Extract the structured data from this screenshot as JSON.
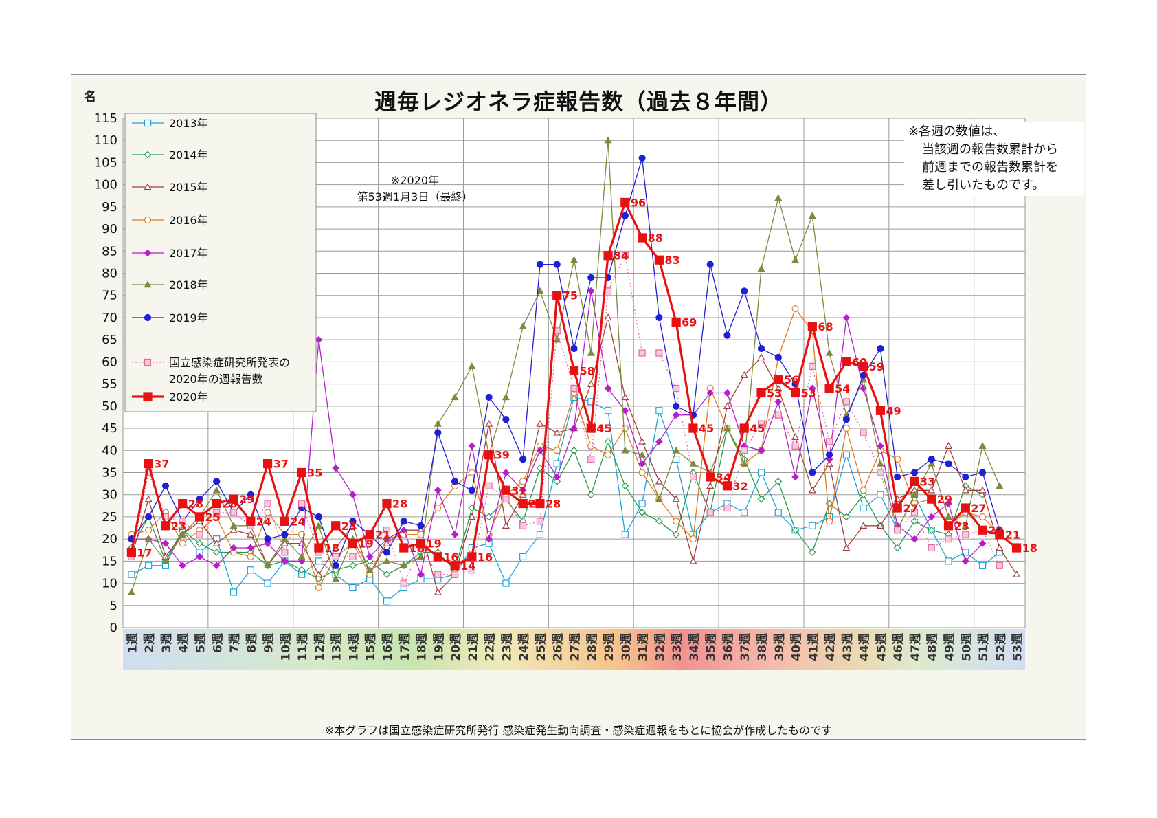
{
  "chart_data": {
    "type": "line",
    "title": "週毎レジオネラ症報告数（過去８年間）",
    "ylabel": "名",
    "xlabel": "",
    "ylim": [
      0,
      115
    ],
    "yticks": [
      0,
      5,
      10,
      15,
      20,
      25,
      30,
      35,
      40,
      45,
      50,
      55,
      60,
      65,
      70,
      75,
      80,
      85,
      90,
      95,
      100,
      105,
      110,
      115
    ],
    "grid": true,
    "legend_position": "top-left",
    "categories": [
      "1週",
      "2週",
      "3週",
      "4週",
      "5週",
      "6週",
      "7週",
      "8週",
      "9週",
      "10週",
      "11週",
      "12週",
      "13週",
      "14週",
      "15週",
      "16週",
      "17週",
      "18週",
      "19週",
      "20週",
      "21週",
      "22週",
      "23週",
      "24週",
      "25週",
      "26週",
      "27週",
      "28週",
      "29週",
      "30週",
      "31週",
      "32週",
      "33週",
      "34週",
      "35週",
      "36週",
      "37週",
      "38週",
      "39週",
      "40週",
      "41週",
      "42週",
      "43週",
      "44週",
      "45週",
      "46週",
      "47週",
      "48週",
      "49週",
      "50週",
      "51週",
      "52週",
      "53週"
    ],
    "series": [
      {
        "name": "2013年",
        "color": "#1aa3d9",
        "marker": "square-open",
        "values": [
          12,
          14,
          14,
          22,
          17,
          20,
          8,
          13,
          10,
          15,
          12,
          15,
          12,
          9,
          11,
          6,
          9,
          11,
          11,
          12,
          18,
          19,
          10,
          16,
          21,
          37,
          52,
          51,
          49,
          21,
          28,
          49,
          38,
          21,
          26,
          28,
          26,
          35,
          26,
          22,
          23,
          25,
          39,
          27,
          30,
          22,
          30,
          22,
          15,
          17,
          14,
          17,
          null
        ]
      },
      {
        "name": "2014年",
        "color": "#1f9e4a",
        "marker": "diamond-open",
        "values": [
          18,
          25,
          15,
          22,
          19,
          17,
          17,
          17,
          14,
          15,
          13,
          11,
          13,
          14,
          15,
          12,
          14,
          17,
          17,
          13,
          27,
          25,
          29,
          24,
          36,
          33,
          40,
          30,
          42,
          32,
          26,
          24,
          21,
          35,
          26,
          45,
          38,
          29,
          33,
          22,
          17,
          28,
          25,
          30,
          23,
          18,
          24,
          22,
          21,
          32,
          30,
          null,
          null
        ]
      },
      {
        "name": "2015年",
        "color": "#a0403c",
        "marker": "triangle-open",
        "values": [
          16,
          29,
          16,
          21,
          24,
          19,
          22,
          21,
          14,
          19,
          19,
          12,
          18,
          23,
          12,
          19,
          22,
          22,
          8,
          12,
          25,
          46,
          23,
          30,
          46,
          44,
          45,
          55,
          70,
          52,
          42,
          33,
          29,
          15,
          32,
          50,
          57,
          61,
          54,
          43,
          31,
          37,
          18,
          23,
          23,
          29,
          31,
          31,
          41,
          31,
          31,
          18,
          12
        ]
      },
      {
        "name": "2016年",
        "color": "#e07b20",
        "marker": "circle-open",
        "values": [
          21,
          22,
          26,
          19,
          22,
          25,
          17,
          16,
          26,
          21,
          21,
          9,
          16,
          19,
          12,
          20,
          21,
          21,
          27,
          32,
          35,
          21,
          30,
          33,
          41,
          40,
          53,
          41,
          39,
          45,
          35,
          29,
          24,
          20,
          54,
          45,
          37,
          40,
          61,
          72,
          67,
          24,
          45,
          31,
          40,
          38,
          28,
          29,
          23,
          26,
          25,
          21,
          null
        ]
      },
      {
        "name": "2017年",
        "color": "#b41fc8",
        "marker": "diamond",
        "values": [
          20,
          20,
          19,
          14,
          16,
          14,
          18,
          18,
          19,
          15,
          15,
          65,
          36,
          30,
          16,
          20,
          22,
          12,
          31,
          21,
          41,
          20,
          35,
          31,
          40,
          34,
          45,
          76,
          54,
          49,
          37,
          42,
          48,
          48,
          53,
          53,
          41,
          40,
          51,
          34,
          54,
          38,
          70,
          54,
          41,
          23,
          20,
          25,
          28,
          15,
          19,
          null,
          null
        ]
      },
      {
        "name": "2018年",
        "color": "#7d8a3a",
        "marker": "triangle",
        "values": [
          8,
          20,
          15,
          21,
          25,
          31,
          23,
          23,
          14,
          20,
          16,
          23,
          11,
          20,
          13,
          15,
          14,
          16,
          46,
          52,
          59,
          39,
          52,
          68,
          76,
          65,
          83,
          62,
          110,
          40,
          39,
          29,
          40,
          37,
          35,
          45,
          37,
          81,
          97,
          83,
          93,
          62,
          48,
          56,
          37,
          22,
          30,
          37,
          25,
          23,
          41,
          32,
          null
        ]
      },
      {
        "name": "2019年",
        "color": "#1f1fd6",
        "marker": "circle",
        "values": [
          20,
          25,
          32,
          24,
          29,
          33,
          26,
          30,
          20,
          21,
          27,
          25,
          14,
          24,
          21,
          17,
          24,
          23,
          44,
          33,
          31,
          52,
          47,
          38,
          82,
          82,
          63,
          79,
          79,
          93,
          106,
          70,
          50,
          48,
          82,
          66,
          76,
          63,
          61,
          55,
          35,
          39,
          47,
          57,
          63,
          34,
          35,
          38,
          37,
          34,
          35,
          22,
          null
        ]
      },
      {
        "name": "国立感染症研究所発表の2020年の週報告数",
        "color": "#e66aa0",
        "marker": "square-pattern",
        "dotted": true,
        "values": [
          16,
          35,
          25,
          24,
          21,
          26,
          26,
          23,
          28,
          17,
          28,
          17,
          16,
          16,
          20,
          22,
          10,
          18,
          12,
          12,
          13,
          32,
          29,
          23,
          24,
          67,
          54,
          38,
          76,
          84,
          62,
          62,
          54,
          34,
          26,
          27,
          40,
          46,
          48,
          41,
          59,
          42,
          51,
          44,
          35,
          22,
          26,
          18,
          20,
          21,
          22,
          14,
          null
        ]
      },
      {
        "name": "2020年",
        "color": "#e81010",
        "marker": "square",
        "bold": true,
        "values": [
          17,
          37,
          23,
          28,
          25,
          28,
          29,
          24,
          37,
          24,
          35,
          18,
          23,
          19,
          21,
          28,
          18,
          19,
          16,
          14,
          16,
          39,
          31,
          28,
          28,
          75,
          58,
          45,
          84,
          96,
          88,
          83,
          69,
          45,
          34,
          32,
          45,
          53,
          56,
          53,
          68,
          54,
          60,
          59,
          49,
          27,
          33,
          29,
          23,
          27,
          22,
          21,
          18
        ],
        "data_labels_shown": true
      }
    ]
  },
  "notes": {
    "year_2020_line1": "※2020年",
    "year_2020_line2": "第53週1月3日（最終）",
    "calc_line1": "※各週の数値は、",
    "calc_line2": "当該週の報告数累計から",
    "calc_line3": "前週までの報告数累計を",
    "calc_line4": "差し引いたものです。",
    "footnote": "※本グラフは国立感染症研究所発行 感染症発生動向調査・感染症週報をもとに協会が作成したものです"
  },
  "legend_items": [
    "2013年",
    "2014年",
    "2015年",
    "2016年",
    "2017年",
    "2018年",
    "2019年",
    "国立感染症研究所発表の",
    "2020年の週報告数",
    "2020年"
  ]
}
